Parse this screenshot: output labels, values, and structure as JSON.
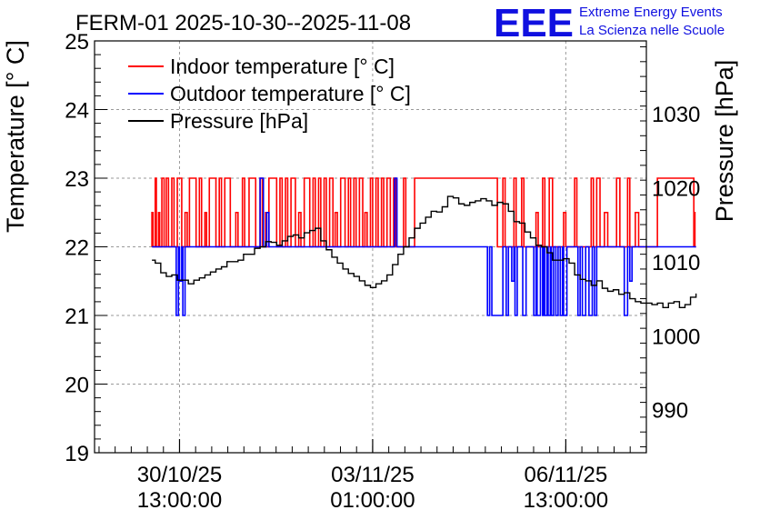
{
  "chart_data": {
    "type": "line",
    "title": "FERM-01 2025-10-30--2025-11-08",
    "logo": {
      "letters": "EEE",
      "line1": "Extreme Energy Events",
      "line2": "La Scienza nelle Scuole",
      "color": "#1010e0"
    },
    "ylabel_left": "Temperature [° C]",
    "ylabel_right": "Pressure [hPa]",
    "xlabel": "",
    "grid": true,
    "legend_position": "top-left",
    "x_range_days": [
      0,
      10
    ],
    "ylim_left": [
      19,
      25
    ],
    "ylim_right": [
      984.2,
      1039.8
    ],
    "yticks_left": [
      19,
      20,
      21,
      22,
      23,
      24,
      25
    ],
    "yticks_right": [
      990,
      1000,
      1010,
      1020,
      1030
    ],
    "x_ticks": [
      {
        "day": 1.54,
        "line1": "30/10/25",
        "line2": "13:00:00"
      },
      {
        "day": 5.04,
        "line1": "03/11/25",
        "line2": "01:00:00"
      },
      {
        "day": 8.54,
        "line1": "06/11/25",
        "line2": "13:00:00"
      }
    ],
    "series": [
      {
        "name": "Indoor temperature [° C]",
        "color": "#ff0000",
        "axis": "left",
        "kind": "step",
        "baseline": 22,
        "high": 23,
        "x_start": 1.04,
        "x_end": 10.9,
        "segments": [
          [
            1.04,
            1.06,
            22.5
          ],
          [
            1.1,
            1.12,
            23
          ],
          [
            1.16,
            1.18,
            22.5
          ],
          [
            1.22,
            1.26,
            23
          ],
          [
            1.3,
            1.34,
            23
          ],
          [
            1.4,
            1.44,
            23
          ],
          [
            1.5,
            1.58,
            23
          ],
          [
            1.64,
            1.68,
            22.5
          ],
          [
            1.72,
            1.84,
            23
          ],
          [
            1.9,
            1.94,
            23
          ],
          [
            2.0,
            2.03,
            22.5
          ],
          [
            2.08,
            2.2,
            23
          ],
          [
            2.26,
            2.3,
            23
          ],
          [
            2.36,
            2.46,
            23
          ],
          [
            2.56,
            2.6,
            22.5
          ],
          [
            2.68,
            2.72,
            23
          ],
          [
            2.8,
            2.92,
            23
          ],
          [
            3.0,
            3.04,
            23
          ],
          [
            3.1,
            3.12,
            22.5
          ],
          [
            3.16,
            3.3,
            23
          ],
          [
            3.36,
            3.4,
            23
          ],
          [
            3.46,
            3.5,
            23
          ],
          [
            3.56,
            3.64,
            23
          ],
          [
            3.7,
            3.74,
            22.5
          ],
          [
            3.8,
            3.9,
            23
          ],
          [
            3.96,
            4.0,
            23
          ],
          [
            4.06,
            4.1,
            23
          ],
          [
            4.16,
            4.2,
            23
          ],
          [
            4.26,
            4.32,
            23
          ],
          [
            4.36,
            4.4,
            22.5
          ],
          [
            4.46,
            4.54,
            23
          ],
          [
            4.6,
            4.64,
            23
          ],
          [
            4.7,
            4.74,
            23
          ],
          [
            4.8,
            4.86,
            23
          ],
          [
            4.9,
            4.94,
            22.5
          ],
          [
            5.0,
            5.04,
            23
          ],
          [
            5.1,
            5.14,
            23
          ],
          [
            5.2,
            5.24,
            23
          ],
          [
            5.3,
            5.36,
            23
          ],
          [
            5.42,
            5.46,
            23
          ],
          [
            5.6,
            5.64,
            23
          ],
          [
            5.8,
            7.3,
            23
          ],
          [
            7.4,
            7.44,
            23
          ],
          [
            7.6,
            7.64,
            23
          ],
          [
            7.74,
            7.78,
            23
          ],
          [
            8.0,
            8.04,
            22.5
          ],
          [
            8.12,
            8.16,
            23
          ],
          [
            8.24,
            8.3,
            23
          ],
          [
            8.5,
            8.54,
            22.5
          ],
          [
            8.7,
            8.74,
            23
          ],
          [
            9.0,
            9.04,
            23
          ],
          [
            9.1,
            9.16,
            23
          ],
          [
            9.24,
            9.3,
            22.5
          ],
          [
            9.46,
            9.52,
            23
          ],
          [
            9.66,
            9.7,
            23
          ],
          [
            9.8,
            9.86,
            22.5
          ],
          [
            10.2,
            10.86,
            23
          ],
          [
            10.86,
            10.88,
            22.5
          ]
        ]
      },
      {
        "name": "Outdoor temperature [° C]",
        "color": "#0000ff",
        "axis": "left",
        "kind": "step",
        "baseline": 22,
        "x_start": 1.04,
        "x_end": 10.9,
        "segments": [
          [
            1.48,
            1.52,
            21
          ],
          [
            1.54,
            1.58,
            21.5
          ],
          [
            1.6,
            1.64,
            21
          ],
          [
            3.0,
            3.06,
            23
          ],
          [
            3.12,
            3.16,
            22.5
          ],
          [
            5.44,
            5.48,
            23
          ],
          [
            7.12,
            7.16,
            21
          ],
          [
            7.2,
            7.4,
            21
          ],
          [
            7.46,
            7.5,
            21
          ],
          [
            7.56,
            7.6,
            21.5
          ],
          [
            7.62,
            7.66,
            21
          ],
          [
            7.76,
            7.82,
            21
          ],
          [
            7.96,
            8.0,
            21
          ],
          [
            8.02,
            8.08,
            21
          ],
          [
            8.12,
            8.14,
            21
          ],
          [
            8.16,
            8.2,
            21
          ],
          [
            8.22,
            8.26,
            21
          ],
          [
            8.28,
            8.32,
            21
          ],
          [
            8.36,
            8.4,
            21
          ],
          [
            8.44,
            8.48,
            21
          ],
          [
            8.5,
            8.56,
            21
          ],
          [
            8.76,
            8.8,
            21
          ],
          [
            8.84,
            8.9,
            21
          ],
          [
            8.96,
            9.02,
            21
          ],
          [
            9.06,
            9.1,
            21
          ],
          [
            9.6,
            9.66,
            21
          ],
          [
            9.7,
            9.74,
            21.5
          ]
        ]
      },
      {
        "name": "Pressure [hPa]",
        "color": "#000000",
        "axis": "right",
        "kind": "line",
        "x": [
          1.04,
          1.1,
          1.2,
          1.3,
          1.4,
          1.5,
          1.6,
          1.7,
          1.8,
          1.9,
          2.0,
          2.1,
          2.2,
          2.3,
          2.4,
          2.5,
          2.6,
          2.7,
          2.8,
          2.9,
          3.0,
          3.1,
          3.2,
          3.3,
          3.4,
          3.5,
          3.6,
          3.7,
          3.8,
          3.9,
          4.0,
          4.1,
          4.2,
          4.3,
          4.4,
          4.5,
          4.6,
          4.7,
          4.8,
          4.9,
          5.0,
          5.1,
          5.2,
          5.3,
          5.4,
          5.5,
          5.6,
          5.7,
          5.8,
          5.9,
          6.0,
          6.1,
          6.2,
          6.3,
          6.4,
          6.5,
          6.6,
          6.7,
          6.8,
          6.9,
          7.0,
          7.1,
          7.2,
          7.3,
          7.4,
          7.5,
          7.6,
          7.7,
          7.8,
          7.9,
          8.0,
          8.1,
          8.2,
          8.3,
          8.4,
          8.5,
          8.6,
          8.7,
          8.8,
          8.9,
          9.0,
          9.1,
          9.2,
          9.3,
          9.4,
          9.5,
          9.6,
          9.7,
          9.8,
          9.9,
          10.0,
          10.1,
          10.2,
          10.3,
          10.4,
          10.5,
          10.6,
          10.7,
          10.8,
          10.9
        ],
        "values": [
          1010.2,
          1009.8,
          1008.5,
          1008,
          1008.2,
          1007.5,
          1007.5,
          1007,
          1007.5,
          1007.8,
          1008.2,
          1008.6,
          1009,
          1009.3,
          1010,
          1010,
          1010.2,
          1011,
          1011,
          1011.8,
          1012,
          1012.7,
          1012.6,
          1012.2,
          1012.8,
          1013.4,
          1013.6,
          1013.2,
          1013.9,
          1014.2,
          1014.5,
          1012.8,
          1011.6,
          1010.6,
          1009.8,
          1009,
          1008.4,
          1008,
          1007.4,
          1006.8,
          1006.5,
          1007,
          1007.4,
          1008.2,
          1009.6,
          1011,
          1012,
          1013.2,
          1014.5,
          1015.2,
          1016,
          1016.8,
          1016.7,
          1017.4,
          1018.8,
          1018.6,
          1017.8,
          1017.6,
          1018,
          1018.2,
          1018.5,
          1018.2,
          1017.6,
          1018,
          1017.8,
          1016.8,
          1015.4,
          1015.2,
          1014,
          1013.2,
          1012.2,
          1012,
          1011.2,
          1010.2,
          1010.2,
          1010.4,
          1009.8,
          1008.2,
          1007.6,
          1007.4,
          1006.8,
          1007.4,
          1006.4,
          1006,
          1006.2,
          1005.6,
          1005.8,
          1005,
          1004.6,
          1004.4,
          1004.4,
          1004.2,
          1004.4,
          1003.8,
          1004.4,
          1004.6,
          1003.8,
          1004.2,
          1005.2,
          1005.7
        ]
      }
    ]
  }
}
